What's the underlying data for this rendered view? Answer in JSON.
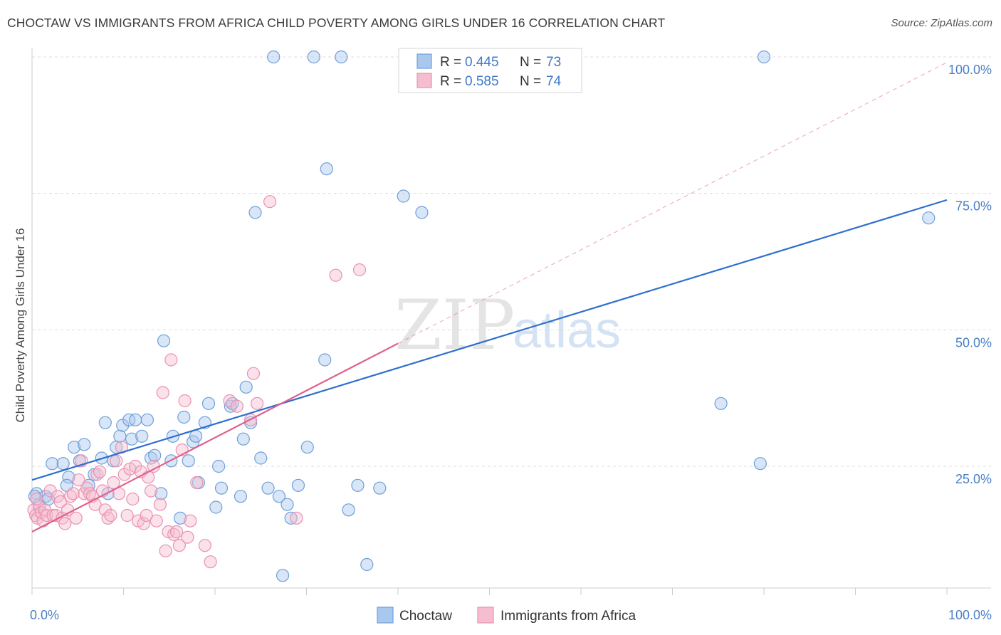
{
  "title": "CHOCTAW VS IMMIGRANTS FROM AFRICA CHILD POVERTY AMONG GIRLS UNDER 16 CORRELATION CHART",
  "source": "Source: ZipAtlas.com",
  "watermark": {
    "zip": "ZIP",
    "atlas": "atlas"
  },
  "colors": {
    "choctaw_fill": "#a9c8ee",
    "choctaw_stroke": "#6f9fd8",
    "choctaw_line": "#2f6fcf",
    "africa_fill": "#f6bcd0",
    "africa_stroke": "#e892b0",
    "africa_line": "#e0608e",
    "grid": "#dcdcdc",
    "tick_label": "#4a7fc4"
  },
  "legend_top": {
    "rows": [
      {
        "r_label": "R =",
        "r_value": "0.445",
        "n_label": "N =",
        "n_value": "73"
      },
      {
        "r_label": "R =",
        "r_value": "0.585",
        "n_label": "N =",
        "n_value": "74"
      }
    ]
  },
  "chart_data": {
    "type": "scatter",
    "title": "CHOCTAW VS IMMIGRANTS FROM AFRICA CHILD POVERTY AMONG GIRLS UNDER 16 CORRELATION CHART",
    "xlabel": "",
    "ylabel": "Child Poverty Among Girls Under 16",
    "xlim": [
      0,
      100
    ],
    "ylim": [
      0,
      102
    ],
    "x_tick_labels": [
      "0.0%",
      "100.0%"
    ],
    "y_ticks": [
      25,
      50,
      75,
      100
    ],
    "y_tick_labels": [
      "25.0%",
      "50.0%",
      "75.0%",
      "100.0%"
    ],
    "grid": true,
    "legend_position": "bottom",
    "series": [
      {
        "name": "Choctaw",
        "r": 0.445,
        "n": 73,
        "trend": {
          "x": [
            0,
            100
          ],
          "y": [
            22.5,
            73.8
          ]
        },
        "points": [
          [
            0.5,
            20
          ],
          [
            0.8,
            18
          ],
          [
            1.5,
            19.5
          ],
          [
            1.8,
            19
          ],
          [
            2.2,
            25.5
          ],
          [
            3.4,
            25.5
          ],
          [
            4,
            23
          ],
          [
            3.8,
            21.5
          ],
          [
            4.6,
            28.5
          ],
          [
            5.7,
            29
          ],
          [
            5.2,
            26
          ],
          [
            6.2,
            21.5
          ],
          [
            6.8,
            23.5
          ],
          [
            7.6,
            26.5
          ],
          [
            8,
            33
          ],
          [
            8.3,
            20
          ],
          [
            8.9,
            26
          ],
          [
            9.2,
            28.5
          ],
          [
            9.6,
            30.5
          ],
          [
            9.9,
            32.5
          ],
          [
            10.6,
            33.5
          ],
          [
            10.9,
            30
          ],
          [
            11.3,
            33.5
          ],
          [
            12,
            30.5
          ],
          [
            12.6,
            33.5
          ],
          [
            13,
            26.5
          ],
          [
            13.4,
            27
          ],
          [
            14.1,
            20
          ],
          [
            14.4,
            48
          ],
          [
            15.2,
            26
          ],
          [
            15.4,
            30.5
          ],
          [
            16.2,
            15.5
          ],
          [
            16.6,
            34
          ],
          [
            17.1,
            26
          ],
          [
            17.6,
            29.5
          ],
          [
            17.9,
            30.5
          ],
          [
            18.2,
            22
          ],
          [
            18.9,
            33
          ],
          [
            19.3,
            36.5
          ],
          [
            20.1,
            17.5
          ],
          [
            20.4,
            25
          ],
          [
            20.7,
            21
          ],
          [
            21.7,
            36
          ],
          [
            21.9,
            36.5
          ],
          [
            22.8,
            19.5
          ],
          [
            23.1,
            30
          ],
          [
            23.4,
            39.5
          ],
          [
            23.9,
            33
          ],
          [
            24.4,
            71.5
          ],
          [
            25,
            26.5
          ],
          [
            25.8,
            21
          ],
          [
            26.4,
            100
          ],
          [
            27,
            19.5
          ],
          [
            27.4,
            5
          ],
          [
            27.9,
            18
          ],
          [
            28.3,
            15.5
          ],
          [
            29.1,
            21.5
          ],
          [
            30.1,
            28.5
          ],
          [
            30.8,
            100
          ],
          [
            32,
            44.5
          ],
          [
            32.2,
            79.5
          ],
          [
            33.8,
            100
          ],
          [
            34.6,
            17
          ],
          [
            35.6,
            21.5
          ],
          [
            36.6,
            7
          ],
          [
            38,
            21
          ],
          [
            40.6,
            74.5
          ],
          [
            42.6,
            71.5
          ],
          [
            75.3,
            36.5
          ],
          [
            79.6,
            25.5
          ],
          [
            80,
            100
          ],
          [
            98,
            70.5
          ],
          [
            0.3,
            19.5
          ]
        ]
      },
      {
        "name": "Immigrants from Africa",
        "r": 0.585,
        "n": 74,
        "trend": {
          "x": [
            0,
            40
          ],
          "y": [
            13,
            47.5
          ],
          "dashed_extension": {
            "x": [
              40,
              100
            ],
            "y": [
              47.5,
              99
            ]
          }
        },
        "points": [
          [
            0.2,
            17
          ],
          [
            0.4,
            16
          ],
          [
            0.6,
            15.5
          ],
          [
            0.8,
            17.5
          ],
          [
            1,
            16.5
          ],
          [
            1.2,
            15
          ],
          [
            1.4,
            17
          ],
          [
            1.6,
            16
          ],
          [
            2,
            20.5
          ],
          [
            2.3,
            16
          ],
          [
            2.6,
            16
          ],
          [
            2.8,
            19.5
          ],
          [
            3.1,
            18.5
          ],
          [
            3.3,
            15.5
          ],
          [
            3.6,
            14.5
          ],
          [
            3.9,
            17
          ],
          [
            4.2,
            19.5
          ],
          [
            4.5,
            20
          ],
          [
            4.8,
            15.5
          ],
          [
            5.1,
            22.5
          ],
          [
            5.4,
            26
          ],
          [
            5.7,
            20
          ],
          [
            6,
            21
          ],
          [
            6.3,
            20
          ],
          [
            6.6,
            19.5
          ],
          [
            6.9,
            18
          ],
          [
            7.1,
            23.5
          ],
          [
            7.4,
            24
          ],
          [
            7.7,
            20.5
          ],
          [
            8,
            17
          ],
          [
            8.3,
            15.5
          ],
          [
            8.6,
            16
          ],
          [
            8.9,
            22
          ],
          [
            9.2,
            26
          ],
          [
            9.5,
            20
          ],
          [
            9.8,
            28.5
          ],
          [
            10.1,
            23.5
          ],
          [
            10.4,
            16
          ],
          [
            10.7,
            24.5
          ],
          [
            11,
            19
          ],
          [
            11.3,
            25
          ],
          [
            11.6,
            15
          ],
          [
            11.9,
            24
          ],
          [
            12.2,
            14.5
          ],
          [
            12.5,
            16
          ],
          [
            12.7,
            23
          ],
          [
            13,
            20.5
          ],
          [
            13.3,
            25
          ],
          [
            13.6,
            15
          ],
          [
            14,
            18
          ],
          [
            14.3,
            38.5
          ],
          [
            14.6,
            9.5
          ],
          [
            14.9,
            13
          ],
          [
            15.2,
            44.5
          ],
          [
            15.5,
            12.5
          ],
          [
            15.8,
            13
          ],
          [
            16.1,
            10.5
          ],
          [
            16.4,
            28
          ],
          [
            16.7,
            37
          ],
          [
            17,
            12
          ],
          [
            17.3,
            15
          ],
          [
            18,
            22
          ],
          [
            18.9,
            10.5
          ],
          [
            19.5,
            7.5
          ],
          [
            21.6,
            37
          ],
          [
            22.4,
            36
          ],
          [
            23.9,
            33.5
          ],
          [
            24.2,
            42
          ],
          [
            24.6,
            36.5
          ],
          [
            26,
            73.5
          ],
          [
            28.9,
            15.5
          ],
          [
            33.2,
            60
          ],
          [
            35.8,
            61
          ],
          [
            0.5,
            19
          ]
        ]
      }
    ]
  }
}
